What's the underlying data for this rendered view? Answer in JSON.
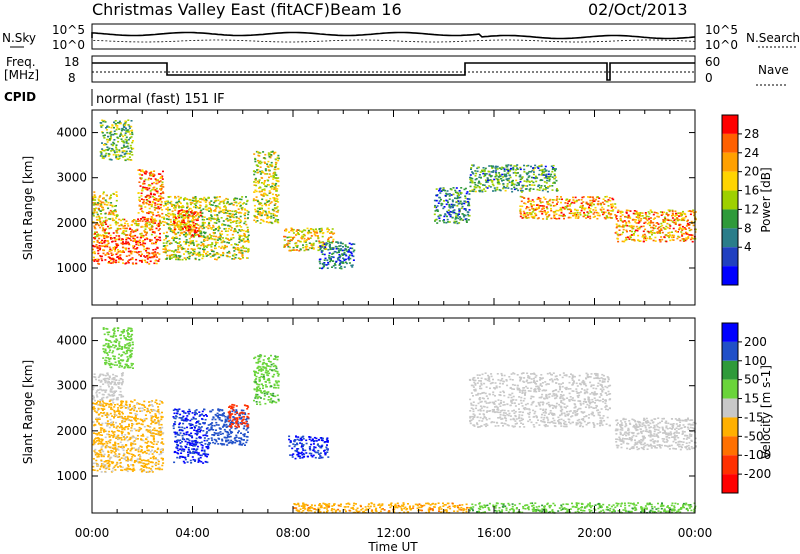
{
  "header": {
    "station": "Christmas Valley East (fitACF)",
    "beam": "Beam 16",
    "date": "02/Oct/2013"
  },
  "noise_panel": {
    "left_label": "N.Sky",
    "right_label": "N.Search",
    "ticks": [
      "10^5",
      "10^0"
    ]
  },
  "freq_panel": {
    "left_label_1": "Freq.",
    "left_label_2": "[MHz]",
    "left_ticks": [
      "18",
      "8"
    ],
    "right_label": "Nave",
    "right_ticks": [
      "60",
      "0"
    ]
  },
  "cpid": {
    "label": "CPID",
    "text": "normal (fast) 151 IF"
  },
  "chart_data": [
    {
      "type": "heatmap",
      "title": "",
      "ylabel": "Slant Range [km]",
      "xlabel": "",
      "xlim": [
        0,
        24
      ],
      "ylim": [
        180,
        4500
      ],
      "yticks": [
        "1000",
        "2000",
        "3000",
        "4000"
      ],
      "colorbar": {
        "label": "Power [dB]",
        "ticks": [
          "28",
          "24",
          "20",
          "16",
          "12",
          "8",
          "4"
        ],
        "colors": [
          "#ff0000",
          "#ff6000",
          "#ffa000",
          "#ffd400",
          "#9ed000",
          "#2f9a3a",
          "#2a7d8a",
          "#2040c0",
          "#0000ff"
        ]
      },
      "cells": [
        {
          "x0": 0.0,
          "x1": 2.7,
          "y0": 1100,
          "y1": 1700,
          "v": 28
        },
        {
          "x0": 0.0,
          "x1": 2.7,
          "y0": 1700,
          "y1": 2100,
          "v": 22
        },
        {
          "x0": 0.0,
          "x1": 1.0,
          "y0": 2100,
          "y1": 2700,
          "v": 18
        },
        {
          "x0": 1.8,
          "x1": 2.8,
          "y0": 2000,
          "y1": 3200,
          "v": 24
        },
        {
          "x0": 0.3,
          "x1": 1.6,
          "y0": 3400,
          "y1": 4300,
          "v": 12
        },
        {
          "x0": 2.8,
          "x1": 6.2,
          "y0": 1200,
          "y1": 2600,
          "v": 16
        },
        {
          "x0": 3.2,
          "x1": 4.3,
          "y0": 1700,
          "y1": 2300,
          "v": 26
        },
        {
          "x0": 6.4,
          "x1": 7.4,
          "y0": 2000,
          "y1": 3600,
          "v": 16
        },
        {
          "x0": 7.6,
          "x1": 9.6,
          "y0": 1400,
          "y1": 1900,
          "v": 18
        },
        {
          "x0": 9.0,
          "x1": 10.4,
          "y0": 1000,
          "y1": 1600,
          "v": 6
        },
        {
          "x0": 15.0,
          "x1": 18.5,
          "y0": 2700,
          "y1": 3300,
          "v": 10
        },
        {
          "x0": 17.0,
          "x1": 20.8,
          "y0": 2100,
          "y1": 2600,
          "v": 22
        },
        {
          "x0": 20.8,
          "x1": 24.0,
          "y0": 1600,
          "y1": 2300,
          "v": 22
        },
        {
          "x0": 13.6,
          "x1": 15.0,
          "y0": 2000,
          "y1": 2800,
          "v": 8
        }
      ]
    },
    {
      "type": "heatmap",
      "title": "",
      "ylabel": "Slant Range [km]",
      "xlabel": "Time UT",
      "xlim": [
        0,
        24
      ],
      "ylim": [
        180,
        4500
      ],
      "xticks": [
        "00:00",
        "04:00",
        "08:00",
        "12:00",
        "16:00",
        "20:00",
        "00:00"
      ],
      "yticks": [
        "1000",
        "2000",
        "3000",
        "4000"
      ],
      "colorbar": {
        "label": "Velocity [m s-1]",
        "ticks": [
          "200",
          "100",
          "50",
          "15",
          "-15",
          "-50",
          "-100",
          "-200"
        ],
        "colors": [
          "#0000ff",
          "#2050c8",
          "#2f9a3a",
          "#6ad43a",
          "#c8c8c8",
          "#ffb000",
          "#ff7000",
          "#ff3000",
          "#ff0000"
        ]
      },
      "cells": [
        {
          "x0": 0.0,
          "x1": 2.8,
          "y0": 1100,
          "y1": 2700,
          "v": -20
        },
        {
          "x0": 0.0,
          "x1": 1.2,
          "y0": 2700,
          "y1": 3300,
          "v": 0
        },
        {
          "x0": 0.4,
          "x1": 1.6,
          "y0": 3400,
          "y1": 4300,
          "v": 30
        },
        {
          "x0": 3.2,
          "x1": 4.6,
          "y0": 1300,
          "y1": 2500,
          "v": 200
        },
        {
          "x0": 4.6,
          "x1": 6.2,
          "y0": 1700,
          "y1": 2500,
          "v": 150
        },
        {
          "x0": 5.4,
          "x1": 6.2,
          "y0": 2100,
          "y1": 2600,
          "v": -150
        },
        {
          "x0": 7.8,
          "x1": 9.4,
          "y0": 1400,
          "y1": 1900,
          "v": 200
        },
        {
          "x0": 6.4,
          "x1": 7.4,
          "y0": 2600,
          "y1": 3700,
          "v": 40
        },
        {
          "x0": 15.0,
          "x1": 20.6,
          "y0": 2100,
          "y1": 3300,
          "v": 0
        },
        {
          "x0": 20.8,
          "x1": 24.0,
          "y0": 1600,
          "y1": 2300,
          "v": 0
        },
        {
          "x0": 8.0,
          "x1": 15.0,
          "y0": 200,
          "y1": 420,
          "v": -40
        },
        {
          "x0": 15.0,
          "x1": 24.0,
          "y0": 200,
          "y1": 420,
          "v": 40
        }
      ]
    }
  ]
}
